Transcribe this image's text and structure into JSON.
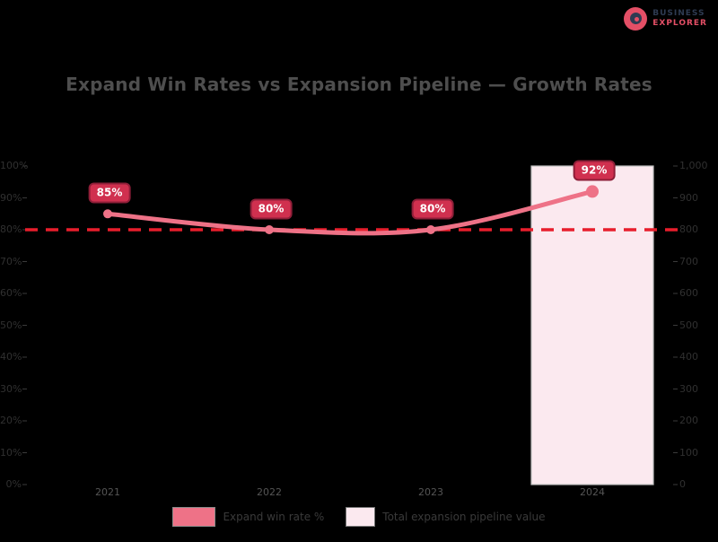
{
  "title": "Expand Win Rates vs Expansion Pipeline — Growth Rates",
  "logo": {
    "line1": "BUSINESS",
    "line2": "EXPLORER",
    "icon_color": "#e44f66",
    "icon_dark_color": "#2e3b52"
  },
  "chart_data": {
    "type": "combo",
    "categories": [
      "2021",
      "2022",
      "2023",
      "2024"
    ],
    "series": [
      {
        "name": "Expand win rate %",
        "type": "line",
        "values": [
          85,
          80,
          80,
          92
        ],
        "labels": [
          "85%",
          "80%",
          "80%",
          "92%"
        ],
        "color": "#ee7287"
      },
      {
        "name": "Total expansion pipeline value",
        "type": "bar",
        "values": [
          null,
          null,
          null,
          1000
        ],
        "color": "#fbe9ef"
      }
    ],
    "target_line": {
      "value": 80,
      "color": "#e81e2c",
      "style": "dashed"
    },
    "left_axis": {
      "min": 0,
      "max": 100,
      "step": 10,
      "format": "percent",
      "labels": [
        "0%",
        "10%",
        "20%",
        "30%",
        "40%",
        "50%",
        "60%",
        "70%",
        "80%",
        "90%",
        "100%"
      ]
    },
    "right_axis": {
      "min": 0,
      "max": 1000,
      "step": 100,
      "labels": [
        "0",
        "100",
        "200",
        "300",
        "400",
        "500",
        "600",
        "700",
        "800",
        "900",
        "1,000"
      ]
    },
    "grid": false,
    "legend_position": "bottom"
  },
  "legend": {
    "items": [
      {
        "label": "Expand win rate %",
        "swatch_color": "#ee7287",
        "series_type": "line"
      },
      {
        "label": "Total expansion pipeline value",
        "swatch_color": "#fbe9ef",
        "series_type": "bar"
      }
    ]
  },
  "colors": {
    "background": "#000000",
    "title_text": "#4e4e4e",
    "axis_text": "#303030",
    "x_axis_text": "#555555",
    "legend_text": "#3a3a3a",
    "line": "#ee7287",
    "bar_fill": "#fbe9ef",
    "data_label_fill": "#d0304f",
    "data_label_border": "#8e1e38",
    "target_line": "#e81e2c"
  }
}
